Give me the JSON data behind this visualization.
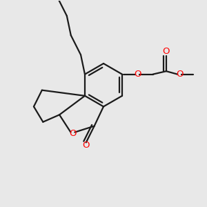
{
  "bg": "#e8e8e8",
  "bond_color": "#1a1a1a",
  "oxygen_color": "#ff0000",
  "lw": 1.6,
  "figsize": [
    3.0,
    3.0
  ],
  "dpi": 100,
  "xlim": [
    0,
    10
  ],
  "ylim": [
    0,
    10
  ]
}
